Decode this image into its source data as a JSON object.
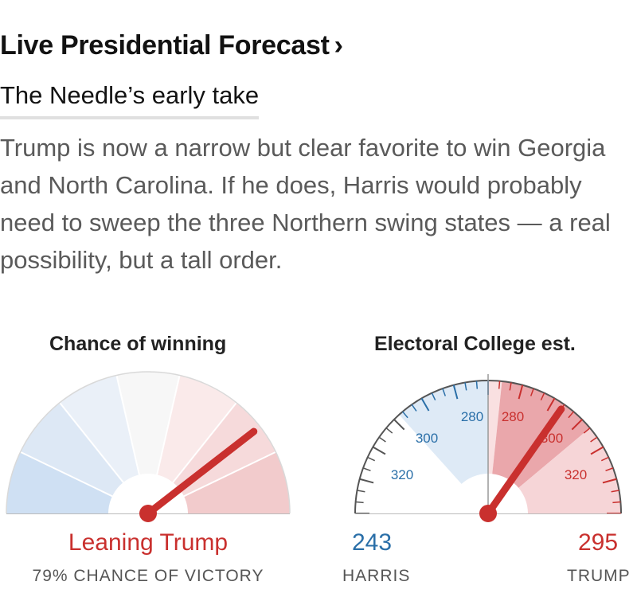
{
  "header": {
    "title": "Live Presidential Forecast",
    "chevron": "›",
    "subtitle": "The Needle’s early take"
  },
  "summary": "Trump is now a narrow but clear favorite to win Georgia and North Carolina. If he does, Harris would probably need to sweep the three Northern swing states — a real possibility, but a tall order.",
  "colors": {
    "harris_blue": "#2a6fa8",
    "trump_red": "#c9302e",
    "text_dark": "#121212",
    "text_gray": "#5a5a5a"
  },
  "chance_gauge": {
    "title": "Chance of winning",
    "status": "Leaning Trump",
    "subtext": "79% CHANCE OF VICTORY",
    "trump_win_probability": 0.79
  },
  "electoral_gauge": {
    "title": "Electoral College est.",
    "harris": {
      "value": "243",
      "label": "HARRIS"
    },
    "trump": {
      "value": "295",
      "label": "TRUMP"
    },
    "tick_labels": {
      "harris": [
        "280",
        "300",
        "320"
      ],
      "trump": [
        "280",
        "300",
        "320"
      ]
    },
    "needle_value": 295
  }
}
